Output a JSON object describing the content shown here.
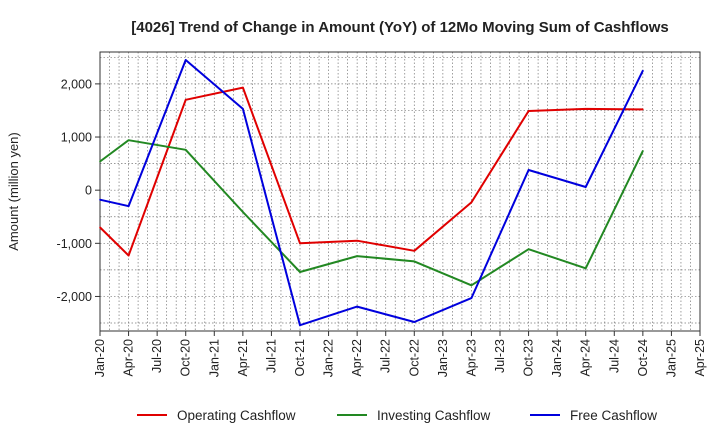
{
  "chart_data": {
    "type": "line",
    "title": "[4026]  Trend of Change in Amount (YoY) of 12Mo Moving Sum of Cashflows",
    "xlabel": "",
    "ylabel": "Amount (million yen)",
    "ylim": [
      -2650,
      2600
    ],
    "yticks": [
      -2000,
      -1000,
      0,
      1000,
      2000
    ],
    "ytick_labels": [
      "-2,000",
      "-1,000",
      "0",
      "1,000",
      "2,000"
    ],
    "grid": true,
    "legend_position": "bottom",
    "categories": [
      "Jan-20",
      "Apr-20",
      "Jul-20",
      "Oct-20",
      "Jan-21",
      "Apr-21",
      "Jul-21",
      "Oct-21",
      "Jan-22",
      "Apr-22",
      "Jul-22",
      "Oct-22",
      "Jan-23",
      "Apr-23",
      "Jul-23",
      "Oct-23",
      "Jan-24",
      "Apr-24",
      "Jul-24",
      "Oct-24",
      "Jan-25",
      "Apr-25"
    ],
    "series": [
      {
        "name": "Operating Cashflow",
        "color": "#e00000",
        "values": [
          -700,
          -1230,
          null,
          1700,
          null,
          1930,
          null,
          -1000,
          null,
          -950,
          null,
          -1140,
          null,
          -230,
          null,
          1490,
          null,
          1530,
          null,
          1520,
          null,
          null
        ]
      },
      {
        "name": "Investing Cashflow",
        "color": "#228822",
        "values": [
          540,
          940,
          null,
          760,
          null,
          -410,
          null,
          -1540,
          null,
          -1240,
          null,
          -1340,
          null,
          -1790,
          null,
          -1110,
          null,
          -1470,
          null,
          740,
          null,
          null
        ]
      },
      {
        "name": "Free Cashflow",
        "color": "#0000dd",
        "values": [
          -180,
          -300,
          null,
          2450,
          null,
          1530,
          null,
          -2540,
          null,
          -2190,
          null,
          -2480,
          null,
          -2030,
          null,
          380,
          null,
          60,
          null,
          2250,
          null,
          null
        ]
      }
    ]
  }
}
